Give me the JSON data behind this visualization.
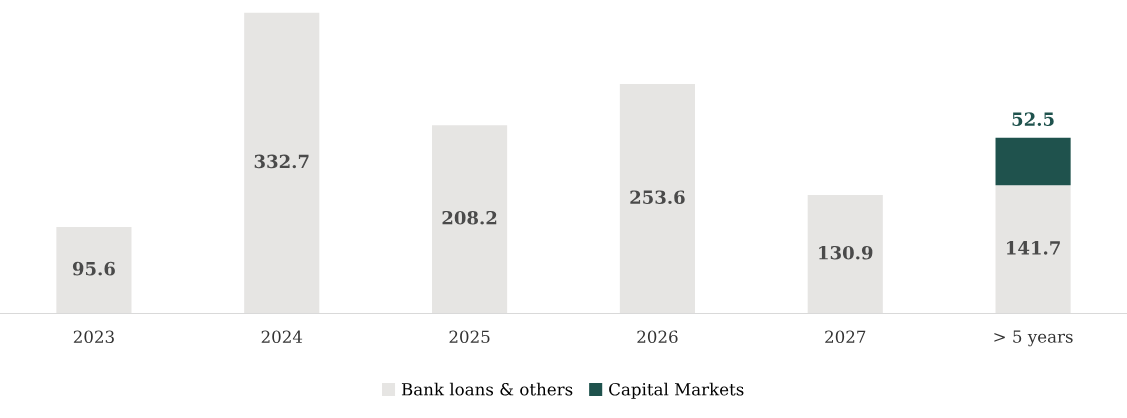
{
  "chart_data": {
    "type": "bar",
    "stacked": true,
    "data_labels": true,
    "legend": "bottom",
    "grid": false,
    "categories": [
      "2023",
      "2024",
      "2025",
      "2026",
      "2027",
      "> 5 years"
    ],
    "series": [
      {
        "name": "Bank loans & others",
        "color": "#e6e5e3",
        "values": [
          95.6,
          332.7,
          208.2,
          253.6,
          130.9,
          141.7
        ]
      },
      {
        "name": "Capital Markets",
        "color": "#1f524d",
        "values": [
          null,
          null,
          null,
          null,
          null,
          52.5
        ]
      }
    ]
  }
}
